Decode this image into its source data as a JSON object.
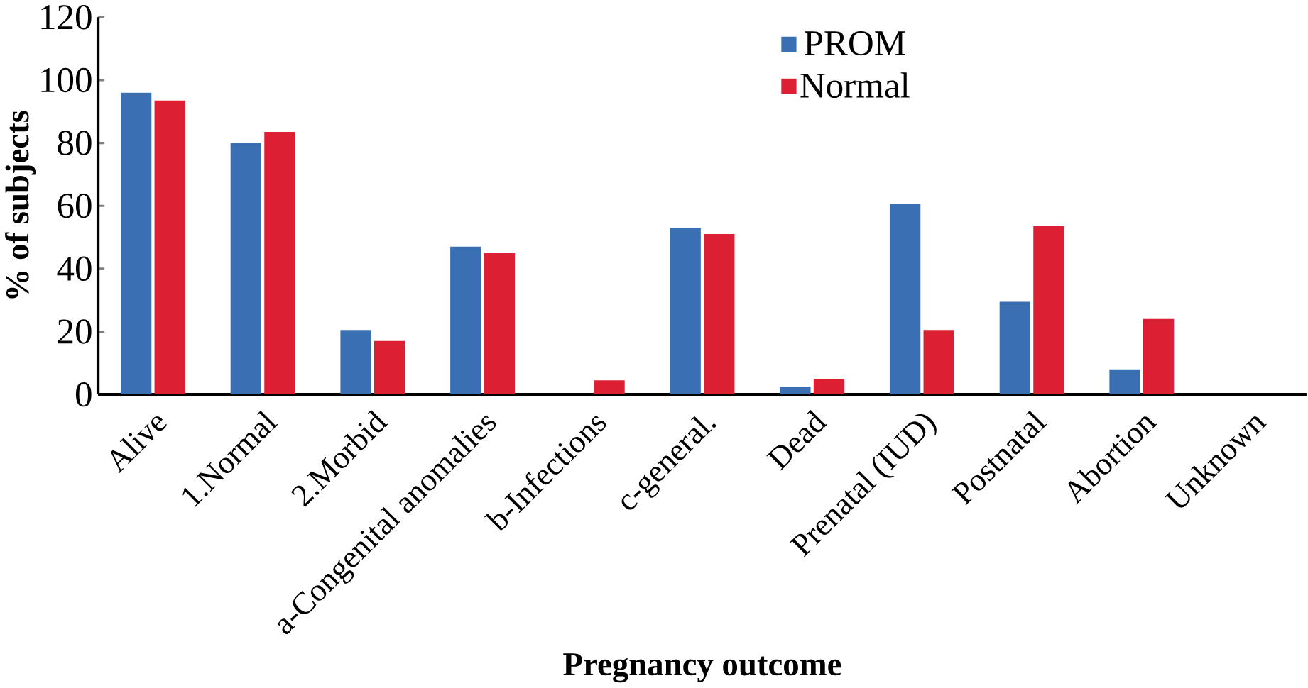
{
  "chart_data": {
    "type": "bar",
    "xlabel": "Pregnancy outcome",
    "ylabel": "% of subjects",
    "categories": [
      "Alive",
      "1.Normal",
      "2.Morbid",
      "a-Congenital anomalies",
      "b-Infections",
      "c-general.",
      "Dead",
      "Prenatal    (IUD)",
      "Postnatal",
      "Abortion",
      "Unknown"
    ],
    "series": [
      {
        "name": "PROM",
        "color": "#3b6fb4",
        "values": [
          96,
          80,
          20.5,
          47,
          0,
          53,
          2.5,
          60.5,
          29.5,
          8,
          0
        ]
      },
      {
        "name": "Normal",
        "color": "#dc1f32",
        "values": [
          93.5,
          83.5,
          17,
          45,
          4.5,
          51,
          5,
          20.5,
          53.5,
          24,
          0
        ]
      }
    ],
    "ylim": [
      0,
      120
    ],
    "yticks": [
      0,
      20,
      40,
      60,
      80,
      100,
      120
    ],
    "grid": false,
    "legend": "top"
  }
}
